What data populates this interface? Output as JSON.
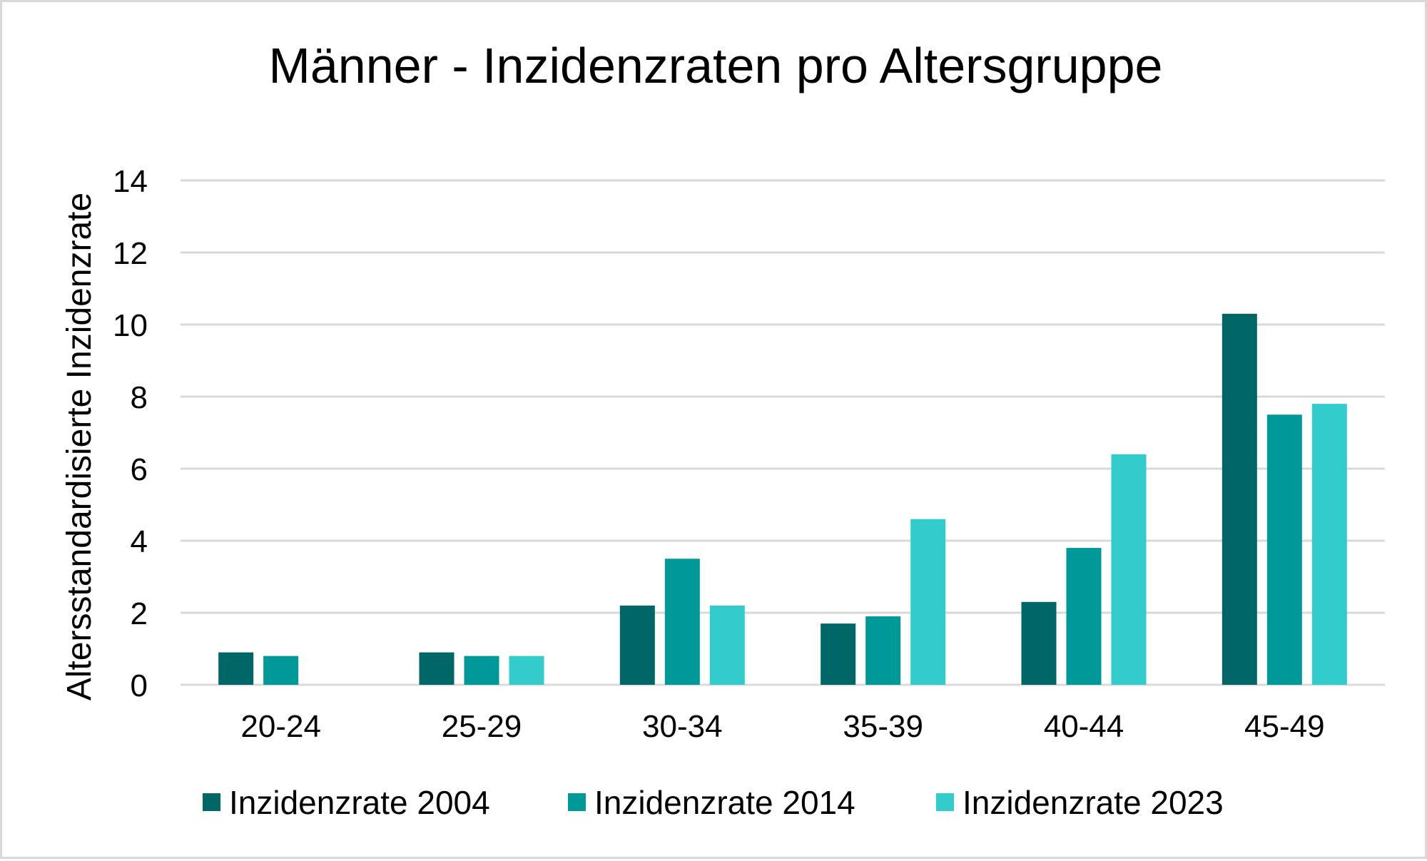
{
  "chart_data": {
    "type": "bar",
    "title": "Männer - Inzidenzraten pro Altersgruppe",
    "xlabel": "",
    "ylabel": "Altersstandardisierte Inzidenzrate",
    "categories": [
      "20-24",
      "25-29",
      "30-34",
      "35-39",
      "40-44",
      "45-49"
    ],
    "series": [
      {
        "name": "Inzidenzrate 2004",
        "color": "#006666",
        "values": [
          0.9,
          0.9,
          2.2,
          1.7,
          2.3,
          10.3
        ]
      },
      {
        "name": "Inzidenzrate 2014",
        "color": "#009999",
        "values": [
          0.8,
          0.8,
          3.5,
          1.9,
          3.8,
          7.5
        ]
      },
      {
        "name": "Inzidenzrate 2023",
        "color": "#33CCCC",
        "values": [
          null,
          0.8,
          2.2,
          4.6,
          6.4,
          7.8
        ]
      }
    ],
    "ylim": [
      0,
      14
    ],
    "yticks": [
      "0",
      "2",
      "4",
      "6",
      "8",
      "10",
      "12",
      "14"
    ],
    "grid": true,
    "legend_position": "bottom"
  }
}
